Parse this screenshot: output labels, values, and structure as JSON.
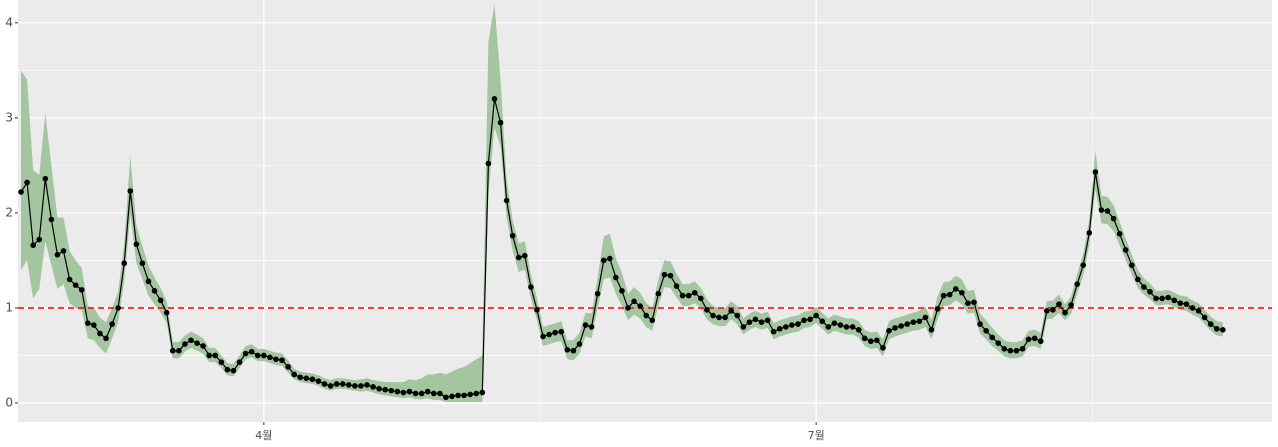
{
  "chart_data": {
    "type": "line",
    "x": [
      -40,
      -39,
      -38,
      -37,
      -36,
      -35,
      -34,
      -33,
      -32,
      -31,
      -30,
      -29,
      -28,
      -27,
      -26,
      -25,
      -24,
      -23,
      -22,
      -21,
      -20,
      -19,
      -18,
      -17,
      -16,
      -15,
      -14,
      -13,
      -12,
      -11,
      -10,
      -9,
      -8,
      -7,
      -6,
      -5,
      -4,
      -3,
      -2,
      -1,
      0,
      1,
      2,
      3,
      4,
      5,
      6,
      7,
      8,
      9,
      10,
      11,
      12,
      13,
      14,
      15,
      16,
      17,
      18,
      19,
      20,
      21,
      22,
      23,
      24,
      25,
      26,
      27,
      28,
      29,
      30,
      31,
      32,
      33,
      34,
      35,
      36,
      37,
      38,
      39,
      40,
      41,
      42,
      43,
      44,
      45,
      46,
      47,
      48,
      49,
      50,
      51,
      52,
      53,
      54,
      55,
      56,
      57,
      58,
      59,
      60,
      61,
      62,
      63,
      64,
      65,
      66,
      67,
      68,
      69,
      70,
      71,
      72,
      73,
      74,
      75,
      76,
      77,
      78,
      79,
      80,
      81,
      82,
      83,
      84,
      85,
      86,
      87,
      88,
      89,
      90,
      91,
      92,
      93,
      94,
      95,
      96,
      97,
      98,
      99,
      100,
      101,
      102,
      103,
      104,
      105,
      106,
      107,
      108,
      109,
      110,
      111,
      112,
      113,
      114,
      115,
      116,
      117,
      118,
      119,
      120,
      121,
      122,
      123,
      124,
      125,
      126,
      127,
      128,
      129,
      130,
      131,
      132,
      133,
      134,
      135,
      136,
      137,
      138,
      139,
      140,
      141,
      142,
      143,
      144,
      145,
      146,
      147,
      148,
      149,
      150,
      151,
      152,
      153,
      154,
      155,
      156,
      157,
      158
    ],
    "values": [
      2.22,
      2.32,
      1.66,
      1.72,
      2.36,
      1.93,
      1.56,
      1.6,
      1.3,
      1.24,
      1.19,
      0.84,
      0.82,
      0.73,
      0.68,
      0.83,
      1.0,
      1.47,
      2.23,
      1.67,
      1.47,
      1.28,
      1.18,
      1.08,
      0.95,
      0.55,
      0.55,
      0.62,
      0.66,
      0.63,
      0.6,
      0.5,
      0.5,
      0.43,
      0.35,
      0.34,
      0.43,
      0.52,
      0.54,
      0.5,
      0.5,
      0.48,
      0.46,
      0.45,
      0.38,
      0.3,
      0.27,
      0.26,
      0.25,
      0.23,
      0.2,
      0.18,
      0.2,
      0.2,
      0.19,
      0.18,
      0.18,
      0.19,
      0.17,
      0.15,
      0.14,
      0.13,
      0.12,
      0.11,
      0.12,
      0.1,
      0.1,
      0.12,
      0.1,
      0.1,
      0.06,
      0.07,
      0.08,
      0.08,
      0.09,
      0.1,
      0.11,
      2.52,
      3.2,
      2.95,
      2.13,
      1.76,
      1.53,
      1.55,
      1.22,
      0.98,
      0.7,
      0.72,
      0.74,
      0.75,
      0.56,
      0.55,
      0.62,
      0.82,
      0.8,
      1.15,
      1.5,
      1.52,
      1.32,
      1.18,
      1.0,
      1.07,
      1.02,
      0.92,
      0.87,
      1.15,
      1.35,
      1.34,
      1.23,
      1.13,
      1.13,
      1.16,
      1.1,
      0.98,
      0.92,
      0.9,
      0.9,
      0.97,
      0.92,
      0.8,
      0.85,
      0.88,
      0.85,
      0.87,
      0.75,
      0.78,
      0.8,
      0.82,
      0.83,
      0.87,
      0.88,
      0.92,
      0.86,
      0.8,
      0.84,
      0.82,
      0.8,
      0.8,
      0.77,
      0.68,
      0.65,
      0.66,
      0.58,
      0.76,
      0.79,
      0.81,
      0.83,
      0.85,
      0.86,
      0.9,
      0.77,
      0.99,
      1.13,
      1.14,
      1.2,
      1.16,
      1.05,
      1.06,
      0.83,
      0.76,
      0.69,
      0.63,
      0.57,
      0.55,
      0.55,
      0.57,
      0.67,
      0.68,
      0.65,
      0.97,
      0.98,
      1.04,
      0.95,
      1.03,
      1.25,
      1.45,
      1.79,
      2.43,
      2.03,
      2.02,
      1.94,
      1.78,
      1.61,
      1.45,
      1.3,
      1.22,
      1.17,
      1.1,
      1.1,
      1.11,
      1.08,
      1.05,
      1.04,
      1.0,
      0.97,
      0.9,
      0.83,
      0.78,
      0.77
    ],
    "lower": [
      1.4,
      1.5,
      1.1,
      1.2,
      1.7,
      1.45,
      1.2,
      1.25,
      1.05,
      1.0,
      0.98,
      0.68,
      0.66,
      0.58,
      0.52,
      0.68,
      0.85,
      1.28,
      1.98,
      1.48,
      1.3,
      1.13,
      1.04,
      0.95,
      0.84,
      0.47,
      0.47,
      0.54,
      0.58,
      0.55,
      0.52,
      0.43,
      0.43,
      0.37,
      0.29,
      0.28,
      0.37,
      0.46,
      0.48,
      0.44,
      0.44,
      0.42,
      0.4,
      0.39,
      0.32,
      0.25,
      0.22,
      0.21,
      0.2,
      0.18,
      0.15,
      0.13,
      0.15,
      0.15,
      0.14,
      0.13,
      0.12,
      0.13,
      0.11,
      0.09,
      0.08,
      0.07,
      0.06,
      0.05,
      0.06,
      0.04,
      0.04,
      0.05,
      0.03,
      0.03,
      0.01,
      0.01,
      0.01,
      0.01,
      0.01,
      0.01,
      0.01,
      2.2,
      2.9,
      2.7,
      1.95,
      1.6,
      1.38,
      1.4,
      1.1,
      0.87,
      0.6,
      0.62,
      0.64,
      0.65,
      0.46,
      0.45,
      0.52,
      0.7,
      0.68,
      1.0,
      1.3,
      1.32,
      1.15,
      1.02,
      0.87,
      0.93,
      0.89,
      0.8,
      0.76,
      1.02,
      1.22,
      1.21,
      1.11,
      1.02,
      1.02,
      1.05,
      1.0,
      0.88,
      0.83,
      0.81,
      0.81,
      0.88,
      0.83,
      0.72,
      0.77,
      0.8,
      0.77,
      0.79,
      0.67,
      0.7,
      0.72,
      0.74,
      0.75,
      0.79,
      0.8,
      0.84,
      0.78,
      0.72,
      0.76,
      0.74,
      0.72,
      0.72,
      0.69,
      0.6,
      0.57,
      0.58,
      0.49,
      0.67,
      0.7,
      0.72,
      0.74,
      0.76,
      0.77,
      0.8,
      0.67,
      0.88,
      1.02,
      1.03,
      1.08,
      1.04,
      0.94,
      0.95,
      0.73,
      0.67,
      0.6,
      0.55,
      0.49,
      0.47,
      0.47,
      0.49,
      0.59,
      0.6,
      0.57,
      0.88,
      0.89,
      0.95,
      0.87,
      0.94,
      1.15,
      1.34,
      1.66,
      2.25,
      1.89,
      1.88,
      1.81,
      1.66,
      1.5,
      1.35,
      1.21,
      1.14,
      1.09,
      1.03,
      1.03,
      1.04,
      1.01,
      0.98,
      0.97,
      0.93,
      0.9,
      0.83,
      0.76,
      0.71,
      0.7
    ],
    "upper": [
      3.5,
      3.4,
      2.45,
      2.4,
      3.05,
      2.5,
      1.95,
      1.95,
      1.6,
      1.5,
      1.42,
      1.02,
      1.0,
      0.9,
      0.85,
      1.0,
      1.17,
      1.68,
      2.6,
      1.87,
      1.65,
      1.44,
      1.32,
      1.21,
      1.07,
      0.64,
      0.64,
      0.71,
      0.75,
      0.72,
      0.68,
      0.58,
      0.58,
      0.5,
      0.42,
      0.41,
      0.5,
      0.6,
      0.62,
      0.57,
      0.57,
      0.55,
      0.53,
      0.52,
      0.45,
      0.36,
      0.33,
      0.32,
      0.31,
      0.29,
      0.26,
      0.24,
      0.26,
      0.26,
      0.25,
      0.24,
      0.25,
      0.26,
      0.24,
      0.23,
      0.22,
      0.22,
      0.22,
      0.22,
      0.25,
      0.24,
      0.26,
      0.3,
      0.3,
      0.32,
      0.3,
      0.33,
      0.36,
      0.38,
      0.42,
      0.46,
      0.5,
      3.8,
      4.2,
      3.4,
      2.35,
      1.92,
      1.68,
      1.7,
      1.35,
      1.1,
      0.8,
      0.82,
      0.84,
      0.86,
      0.66,
      0.66,
      0.74,
      0.95,
      0.94,
      1.32,
      1.75,
      1.78,
      1.52,
      1.37,
      1.15,
      1.22,
      1.16,
      1.05,
      1.0,
      1.3,
      1.5,
      1.49,
      1.36,
      1.25,
      1.25,
      1.28,
      1.21,
      1.09,
      1.02,
      1.0,
      1.0,
      1.07,
      1.02,
      0.89,
      0.94,
      0.97,
      0.94,
      0.96,
      0.84,
      0.87,
      0.89,
      0.91,
      0.92,
      0.96,
      0.97,
      1.01,
      0.95,
      0.89,
      0.93,
      0.91,
      0.89,
      0.89,
      0.86,
      0.77,
      0.74,
      0.75,
      0.67,
      0.86,
      0.89,
      0.91,
      0.93,
      0.95,
      0.97,
      1.01,
      0.88,
      1.12,
      1.27,
      1.28,
      1.34,
      1.3,
      1.18,
      1.19,
      0.94,
      0.87,
      0.79,
      0.72,
      0.66,
      0.64,
      0.64,
      0.66,
      0.76,
      0.77,
      0.74,
      1.07,
      1.08,
      1.14,
      1.04,
      1.12,
      1.36,
      1.57,
      1.93,
      2.65,
      2.18,
      2.17,
      2.08,
      1.91,
      1.73,
      1.56,
      1.4,
      1.31,
      1.26,
      1.18,
      1.18,
      1.19,
      1.16,
      1.13,
      1.12,
      1.08,
      1.05,
      0.98,
      0.91,
      0.86,
      0.85
    ],
    "color": "#000000",
    "band_color": "#a3c5a0",
    "hline": 1,
    "hline_color": "#ff0000",
    "xlim": [
      -40.5,
      166.1
    ],
    "ylim": [
      -0.2,
      4.24
    ],
    "xticks": [
      {
        "value": 0,
        "label": "4월"
      },
      {
        "value": 91,
        "label": "7월"
      }
    ],
    "yticks": [
      0,
      1,
      2,
      3,
      4
    ],
    "grid": true
  }
}
